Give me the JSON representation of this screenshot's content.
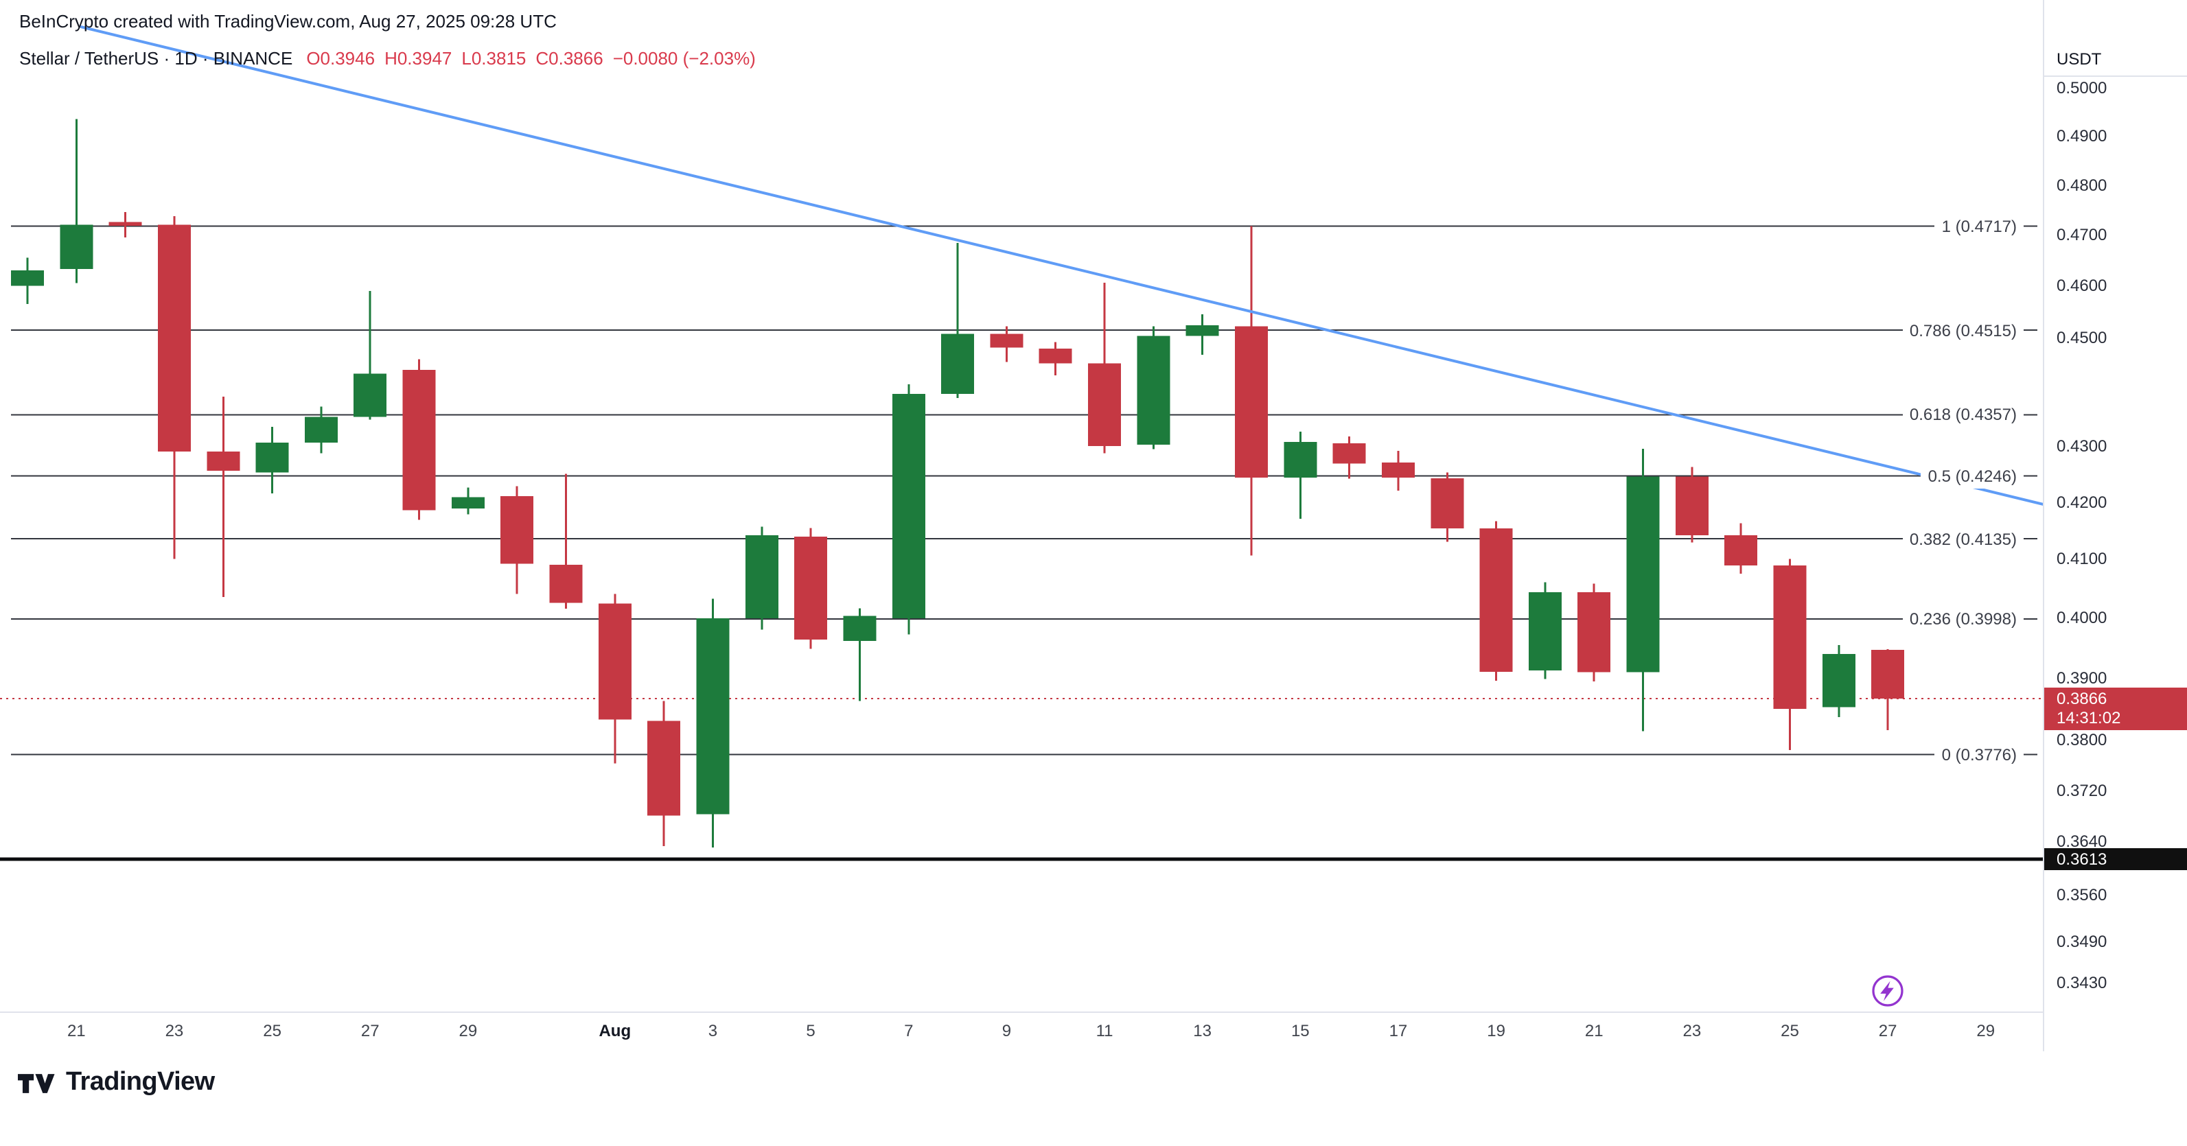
{
  "header": {
    "attribution": "BeInCrypto created with TradingView.com, Aug 27, 2025 09:28 UTC",
    "symbol_meta": "Stellar / TetherUS · 1D · BINANCE",
    "ohlc": {
      "open": "O0.3946",
      "high": "H0.3947",
      "low": "L0.3815",
      "close": "C0.3866",
      "change": "−0.0080 (−2.03%)"
    }
  },
  "price_axis": {
    "currency": "USDT",
    "ticks": [
      0.5,
      0.49,
      0.48,
      0.47,
      0.46,
      0.45,
      0.43,
      0.42,
      0.41,
      0.4,
      0.39,
      0.38,
      0.372,
      0.364,
      0.356,
      0.349,
      0.343
    ],
    "current_price": {
      "value": "0.3866",
      "countdown": "14:31:02"
    },
    "key_level": "0.3613"
  },
  "time_axis": {
    "labels": [
      {
        "text": "21",
        "index": 1
      },
      {
        "text": "23",
        "index": 3
      },
      {
        "text": "25",
        "index": 5
      },
      {
        "text": "27",
        "index": 7
      },
      {
        "text": "29",
        "index": 9
      },
      {
        "text": "Aug",
        "index": 12,
        "bold": true
      },
      {
        "text": "3",
        "index": 14
      },
      {
        "text": "5",
        "index": 16
      },
      {
        "text": "7",
        "index": 18
      },
      {
        "text": "9",
        "index": 20
      },
      {
        "text": "11",
        "index": 22
      },
      {
        "text": "13",
        "index": 24
      },
      {
        "text": "15",
        "index": 26
      },
      {
        "text": "17",
        "index": 28
      },
      {
        "text": "19",
        "index": 30
      },
      {
        "text": "21",
        "index": 32
      },
      {
        "text": "23",
        "index": 34
      },
      {
        "text": "25",
        "index": 36
      },
      {
        "text": "27",
        "index": 38
      },
      {
        "text": "29",
        "index": 40
      }
    ]
  },
  "footer": {
    "brand": "TradingView"
  },
  "colors": {
    "up": "#1d7b3c",
    "down": "#c53843",
    "text_red": "#d93a4c",
    "trendline": "#5f9cf6",
    "fib_line": "#33363e",
    "key_level": "#0b0c0e",
    "badge_red": "#c53843",
    "badge_black": "#101010",
    "accent_purple": "#9334cf",
    "axis_border": "#e0e3eb"
  },
  "chart_data": {
    "type": "candlestick",
    "symbol": "Stellar / TetherUS",
    "interval": "1D",
    "exchange": "BINANCE",
    "quote_currency": "USDT",
    "y_axis_scale": "log",
    "current_price": 0.3866,
    "key_level": 0.3613,
    "marker": {
      "type": "lightning",
      "candle_index": 38
    },
    "trendline": {
      "start": {
        "index": 1.1,
        "price": 0.513
      },
      "end": {
        "index": 41.2,
        "price": 0.4195
      }
    },
    "fib_retracement": [
      {
        "label": "1 (0.4717)",
        "price": 0.4717
      },
      {
        "label": "0.786 (0.4515)",
        "price": 0.4515
      },
      {
        "label": "0.618 (0.4357)",
        "price": 0.4357
      },
      {
        "label": "0.5 (0.4246)",
        "price": 0.4246
      },
      {
        "label": "0.382 (0.4135)",
        "price": 0.4135
      },
      {
        "label": "0.236 (0.3998)",
        "price": 0.3998
      },
      {
        "label": "0 (0.3776)",
        "price": 0.3776
      }
    ],
    "candles": [
      {
        "d": "Jul 20",
        "o": 0.46,
        "h": 0.4655,
        "l": 0.4565,
        "c": 0.463
      },
      {
        "d": "Jul 21",
        "o": 0.4633,
        "h": 0.4935,
        "l": 0.4605,
        "c": 0.472
      },
      {
        "d": "Jul 22",
        "o": 0.4725,
        "h": 0.4745,
        "l": 0.4695,
        "c": 0.4718
      },
      {
        "d": "Jul 23",
        "o": 0.472,
        "h": 0.4737,
        "l": 0.41,
        "c": 0.429
      },
      {
        "d": "Jul 24",
        "o": 0.429,
        "h": 0.439,
        "l": 0.4035,
        "c": 0.4255
      },
      {
        "d": "Jul 25",
        "o": 0.4252,
        "h": 0.4335,
        "l": 0.4215,
        "c": 0.4306
      },
      {
        "d": "Jul 26",
        "o": 0.4306,
        "h": 0.4372,
        "l": 0.4287,
        "c": 0.4353
      },
      {
        "d": "Jul 27",
        "o": 0.4353,
        "h": 0.459,
        "l": 0.4348,
        "c": 0.4433
      },
      {
        "d": "Jul 28",
        "o": 0.444,
        "h": 0.446,
        "l": 0.4168,
        "c": 0.4185
      },
      {
        "d": "Jul 29",
        "o": 0.4188,
        "h": 0.4225,
        "l": 0.4178,
        "c": 0.4208
      },
      {
        "d": "Jul 30",
        "o": 0.421,
        "h": 0.4228,
        "l": 0.404,
        "c": 0.4092
      },
      {
        "d": "Jul 31",
        "o": 0.409,
        "h": 0.425,
        "l": 0.4015,
        "c": 0.4025
      },
      {
        "d": "Aug 1",
        "o": 0.4024,
        "h": 0.404,
        "l": 0.3762,
        "c": 0.3832
      },
      {
        "d": "Aug 2",
        "o": 0.383,
        "h": 0.3862,
        "l": 0.3633,
        "c": 0.368
      },
      {
        "d": "Aug 3",
        "o": 0.3682,
        "h": 0.4032,
        "l": 0.3631,
        "c": 0.3999
      },
      {
        "d": "Aug 4",
        "o": 0.3999,
        "h": 0.4156,
        "l": 0.398,
        "c": 0.4141
      },
      {
        "d": "Aug 5",
        "o": 0.4139,
        "h": 0.4154,
        "l": 0.3948,
        "c": 0.3963
      },
      {
        "d": "Aug 6",
        "o": 0.3961,
        "h": 0.4016,
        "l": 0.3862,
        "c": 0.4003
      },
      {
        "d": "Aug 7",
        "o": 0.3999,
        "h": 0.4413,
        "l": 0.3972,
        "c": 0.4395
      },
      {
        "d": "Aug 8",
        "o": 0.4395,
        "h": 0.4684,
        "l": 0.4388,
        "c": 0.4508
      },
      {
        "d": "Aug 9",
        "o": 0.4508,
        "h": 0.4522,
        "l": 0.4455,
        "c": 0.4482
      },
      {
        "d": "Aug 10",
        "o": 0.448,
        "h": 0.4492,
        "l": 0.443,
        "c": 0.4452
      },
      {
        "d": "Aug 11",
        "o": 0.4452,
        "h": 0.4606,
        "l": 0.4287,
        "c": 0.43
      },
      {
        "d": "Aug 12",
        "o": 0.4302,
        "h": 0.4522,
        "l": 0.4294,
        "c": 0.4504
      },
      {
        "d": "Aug 13",
        "o": 0.4504,
        "h": 0.4545,
        "l": 0.4468,
        "c": 0.4524
      },
      {
        "d": "Aug 14",
        "o": 0.4522,
        "h": 0.4717,
        "l": 0.4106,
        "c": 0.4243
      },
      {
        "d": "Aug 15",
        "o": 0.4243,
        "h": 0.4326,
        "l": 0.417,
        "c": 0.4307
      },
      {
        "d": "Aug 16",
        "o": 0.4305,
        "h": 0.4317,
        "l": 0.4241,
        "c": 0.4268
      },
      {
        "d": "Aug 17",
        "o": 0.427,
        "h": 0.4291,
        "l": 0.422,
        "c": 0.4243
      },
      {
        "d": "Aug 18",
        "o": 0.4242,
        "h": 0.4252,
        "l": 0.413,
        "c": 0.4153
      },
      {
        "d": "Aug 19",
        "o": 0.4153,
        "h": 0.4166,
        "l": 0.3895,
        "c": 0.391
      },
      {
        "d": "Aug 20",
        "o": 0.3912,
        "h": 0.406,
        "l": 0.3898,
        "c": 0.4043
      },
      {
        "d": "Aug 21",
        "o": 0.4043,
        "h": 0.4058,
        "l": 0.3894,
        "c": 0.3909
      },
      {
        "d": "Aug 22",
        "o": 0.3909,
        "h": 0.4295,
        "l": 0.3813,
        "c": 0.4245
      },
      {
        "d": "Aug 23",
        "o": 0.4245,
        "h": 0.4262,
        "l": 0.4129,
        "c": 0.4141
      },
      {
        "d": "Aug 24",
        "o": 0.4141,
        "h": 0.4162,
        "l": 0.4075,
        "c": 0.4089
      },
      {
        "d": "Aug 25",
        "o": 0.4089,
        "h": 0.41,
        "l": 0.3783,
        "c": 0.3849
      },
      {
        "d": "Aug 26",
        "o": 0.3852,
        "h": 0.3954,
        "l": 0.3836,
        "c": 0.3939
      },
      {
        "d": "Aug 27",
        "o": 0.3946,
        "h": 0.3947,
        "l": 0.3815,
        "c": 0.3866
      }
    ]
  }
}
